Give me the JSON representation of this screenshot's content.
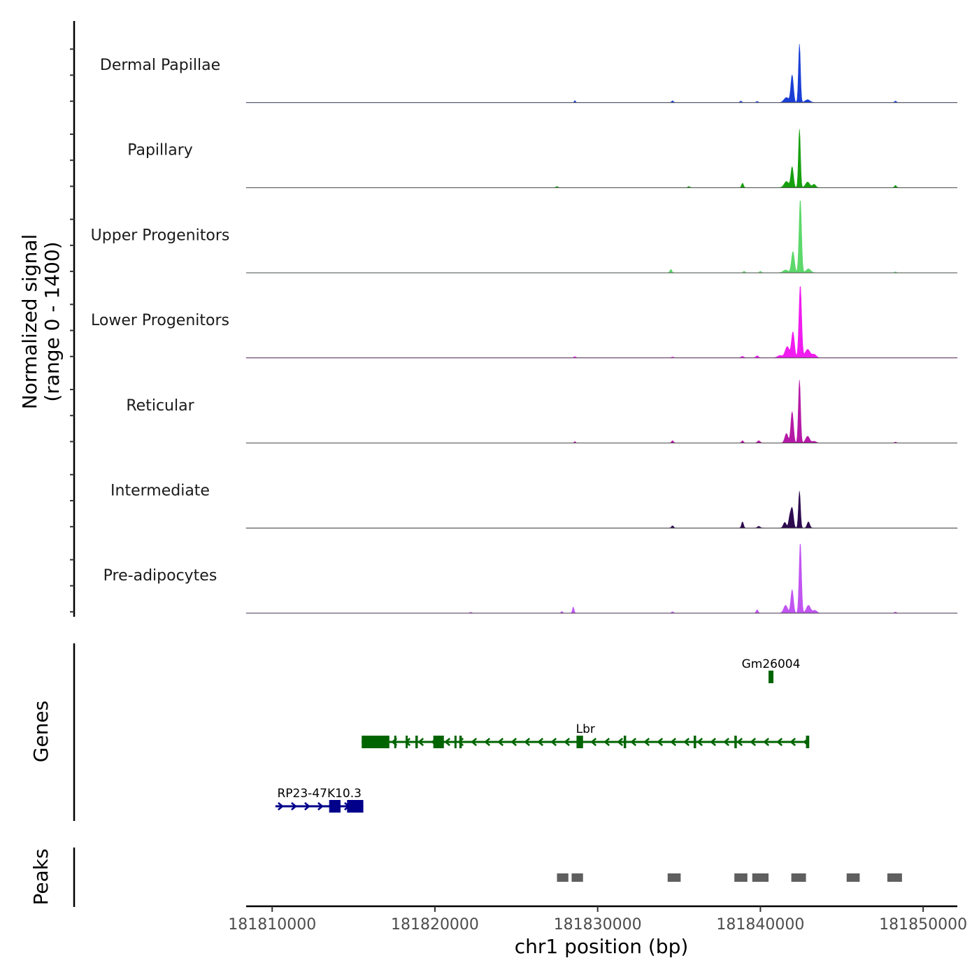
{
  "chart_data": {
    "type": "area",
    "title": "",
    "ylabel_line1": "Normalized signal",
    "ylabel_line2": "(range 0 - 1400)",
    "ylim": [
      0,
      1400
    ],
    "xlabel": "chr1 position (bp)",
    "xlim": [
      181808400,
      181852100
    ],
    "x_ticks": [
      181810000,
      181820000,
      181830000,
      181840000,
      181850000
    ],
    "x_tick_labels": [
      "181810000",
      "181820000",
      "181830000",
      "181840000",
      "181850000"
    ],
    "series": [
      {
        "name": "Dermal Papillae",
        "color": "#1a3fd6",
        "baseline": 1.5,
        "peaks": [
          [
            181842400,
            1050,
            60
          ],
          [
            181841950,
            490,
            80
          ],
          [
            181841600,
            90,
            150
          ],
          [
            181842900,
            50,
            150
          ],
          [
            181828600,
            35,
            40
          ],
          [
            181834600,
            30,
            60
          ],
          [
            181838800,
            25,
            60
          ],
          [
            181839800,
            20,
            60
          ],
          [
            181848300,
            25,
            60
          ]
        ]
      },
      {
        "name": "Papillary",
        "color": "#17a00f",
        "baseline": 1.5,
        "peaks": [
          [
            181842400,
            1050,
            60
          ],
          [
            181841950,
            370,
            80
          ],
          [
            181841600,
            110,
            140
          ],
          [
            181842900,
            100,
            130
          ],
          [
            181843300,
            60,
            100
          ],
          [
            181838900,
            80,
            60
          ],
          [
            181835600,
            20,
            60
          ],
          [
            181848300,
            40,
            60
          ],
          [
            181827500,
            20,
            60
          ]
        ]
      },
      {
        "name": "Upper Progenitors",
        "color": "#5dd86b",
        "baseline": 1.5,
        "peaks": [
          [
            181842450,
            1320,
            75
          ],
          [
            181842000,
            380,
            90
          ],
          [
            181841550,
            50,
            150
          ],
          [
            181842950,
            70,
            140
          ],
          [
            181834500,
            60,
            60
          ],
          [
            181839000,
            25,
            60
          ],
          [
            181840000,
            25,
            60
          ],
          [
            181848300,
            15,
            60
          ]
        ]
      },
      {
        "name": "Lower Progenitors",
        "color": "#f01cf0",
        "baseline": 3,
        "peaks": [
          [
            181842450,
            1300,
            80
          ],
          [
            181842000,
            460,
            90
          ],
          [
            181841650,
            200,
            130
          ],
          [
            181842900,
            150,
            150
          ],
          [
            181843300,
            60,
            130
          ],
          [
            181841200,
            40,
            150
          ],
          [
            181839800,
            35,
            80
          ],
          [
            181838900,
            25,
            80
          ],
          [
            181828600,
            20,
            60
          ],
          [
            181834600,
            15,
            60
          ]
        ]
      },
      {
        "name": "Reticular",
        "color": "#b51aa6",
        "baseline": 1.5,
        "peaks": [
          [
            181842400,
            1130,
            65
          ],
          [
            181841950,
            560,
            80
          ],
          [
            181841600,
            170,
            100
          ],
          [
            181842900,
            120,
            120
          ],
          [
            181843300,
            30,
            120
          ],
          [
            181838900,
            40,
            60
          ],
          [
            181839900,
            40,
            80
          ],
          [
            181834600,
            40,
            60
          ],
          [
            181828600,
            25,
            40
          ],
          [
            181848300,
            15,
            60
          ]
        ]
      },
      {
        "name": "Intermediate",
        "color": "#2e0b4f",
        "baseline": 3,
        "peaks": [
          [
            181842400,
            660,
            60
          ],
          [
            181841950,
            350,
            80
          ],
          [
            181841500,
            100,
            90
          ],
          [
            181841800,
            180,
            70
          ],
          [
            181842950,
            110,
            80
          ],
          [
            181838900,
            110,
            60
          ],
          [
            181834600,
            40,
            60
          ],
          [
            181839900,
            30,
            80
          ]
        ]
      },
      {
        "name": "Pre-adipocytes",
        "color": "#c155f2",
        "baseline": 2,
        "peaks": [
          [
            181842450,
            1270,
            70
          ],
          [
            181841950,
            420,
            80
          ],
          [
            181841550,
            140,
            120
          ],
          [
            181842950,
            140,
            130
          ],
          [
            181843350,
            50,
            120
          ],
          [
            181828500,
            110,
            50
          ],
          [
            181827800,
            30,
            50
          ],
          [
            181839800,
            60,
            60
          ],
          [
            181834600,
            25,
            60
          ],
          [
            181848300,
            20,
            60
          ],
          [
            181822200,
            15,
            60
          ]
        ]
      }
    ],
    "genes_track_label": "Genes",
    "genes": [
      {
        "name": "Gm26004",
        "strand": "-",
        "start": 181840500,
        "end": 181840800,
        "color": "#006400",
        "exons": [
          [
            181840500,
            181840800
          ]
        ]
      },
      {
        "name": "Lbr",
        "strand": "-",
        "start": 181815500,
        "end": 181843000,
        "color": "#006400",
        "exons": [
          [
            181815500,
            181817200
          ],
          [
            181817500,
            181817600
          ],
          [
            181818200,
            181818300
          ],
          [
            181818800,
            181818950
          ],
          [
            181819900,
            181820550
          ],
          [
            181821200,
            181821300
          ],
          [
            181821500,
            181821650
          ],
          [
            181828700,
            181829100
          ],
          [
            181831600,
            181831750
          ],
          [
            181835900,
            181836050
          ],
          [
            181838400,
            181838550
          ],
          [
            181842800,
            181843000
          ]
        ]
      },
      {
        "name": "RP23-47K10.3",
        "strand": "+",
        "start": 181810200,
        "end": 181815600,
        "color": "#00008b",
        "exons": [
          [
            181813500,
            181814200
          ],
          [
            181814600,
            181815600
          ]
        ]
      }
    ],
    "peaks_track_label": "Peaks",
    "peaks_color": "#5f5f5f",
    "peak_regions": [
      [
        181827500,
        181828200
      ],
      [
        181828400,
        181829100
      ],
      [
        181834300,
        181835100
      ],
      [
        181838400,
        181839200
      ],
      [
        181839500,
        181840500
      ],
      [
        181841900,
        181842800
      ],
      [
        181845300,
        181846100
      ],
      [
        181847800,
        181848700
      ]
    ]
  }
}
